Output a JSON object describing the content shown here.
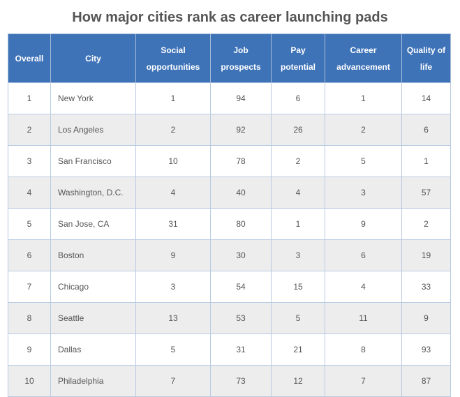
{
  "title": "How major cities rank as career launching pads",
  "colors": {
    "header_bg": "#3f73b8",
    "header_text": "#ffffff",
    "row_alt": "#ededed",
    "text": "#555555"
  },
  "chart_data": {
    "type": "table",
    "title": "How major cities rank as career launching pads",
    "columns": [
      "Overall",
      "City",
      "Social opportunities",
      "Job prospects",
      "Pay potential",
      "Career advancement",
      "Quality of life"
    ],
    "rows": [
      [
        "1",
        "New York",
        "1",
        "94",
        "6",
        "1",
        "14"
      ],
      [
        "2",
        "Los Angeles",
        "2",
        "92",
        "26",
        "2",
        "6"
      ],
      [
        "3",
        "San Francisco",
        "10",
        "78",
        "2",
        "5",
        "1"
      ],
      [
        "4",
        "Washington, D.C.",
        "4",
        "40",
        "4",
        "3",
        "57"
      ],
      [
        "5",
        "San Jose, CA",
        "31",
        "80",
        "1",
        "9",
        "2"
      ],
      [
        "6",
        "Boston",
        "9",
        "30",
        "3",
        "6",
        "19"
      ],
      [
        "7",
        "Chicago",
        "3",
        "54",
        "15",
        "4",
        "33"
      ],
      [
        "8",
        "Seattle",
        "13",
        "53",
        "5",
        "11",
        "9"
      ],
      [
        "9",
        "Dallas",
        "5",
        "31",
        "21",
        "8",
        "93"
      ],
      [
        "10",
        "Philadelphia",
        "7",
        "73",
        "12",
        "7",
        "87"
      ]
    ]
  }
}
